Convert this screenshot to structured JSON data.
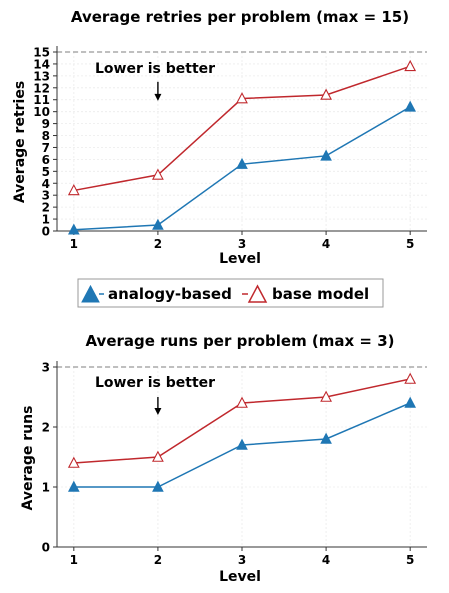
{
  "legend": {
    "placement": "between charts",
    "items": [
      {
        "label": "analogy-based",
        "color": "#1f77b4",
        "marker": "filled-triangle"
      },
      {
        "label": "base model",
        "color": "#c0282d",
        "marker": "hollow-triangle"
      }
    ]
  },
  "chart_data": [
    {
      "type": "line",
      "title": "Average retries per problem (max = 15)",
      "xlabel": "Level",
      "ylabel": "Average retries",
      "x": [
        1,
        2,
        3,
        4,
        5
      ],
      "x_ticks": [
        "1",
        "2",
        "3",
        "4",
        "5"
      ],
      "y_ticks": [
        "0",
        "1",
        "2",
        "3",
        "4",
        "5",
        "6",
        "7",
        "8",
        "9",
        "10",
        "11",
        "12",
        "13",
        "14",
        "15"
      ],
      "ylim": [
        0,
        15
      ],
      "xlim": [
        0.8,
        5.2
      ],
      "max_line": 15,
      "grid": true,
      "annotation": {
        "text": "Lower is better",
        "arrow_x": 2,
        "arrow_from_y": 12.5,
        "arrow_to_y": 10.9
      },
      "series": [
        {
          "name": "analogy-based",
          "color": "#1f77b4",
          "values": [
            0.1,
            0.5,
            5.6,
            6.3,
            10.4
          ]
        },
        {
          "name": "base model",
          "color": "#c0282d",
          "values": [
            3.4,
            4.7,
            11.1,
            11.4,
            13.8
          ]
        }
      ]
    },
    {
      "type": "line",
      "title": "Average runs per problem (max = 3)",
      "xlabel": "Level",
      "ylabel": "Average runs",
      "x": [
        1,
        2,
        3,
        4,
        5
      ],
      "x_ticks": [
        "1",
        "2",
        "3",
        "4",
        "5"
      ],
      "y_ticks": [
        "0",
        "1",
        "2",
        "3"
      ],
      "ylim": [
        0,
        3
      ],
      "xlim": [
        0.8,
        5.2
      ],
      "max_line": 3,
      "grid": true,
      "annotation": {
        "text": "Lower is better",
        "arrow_x": 2,
        "arrow_from_y": 2.5,
        "arrow_to_y": 2.2
      },
      "series": [
        {
          "name": "analogy-based",
          "color": "#1f77b4",
          "values": [
            1.0,
            1.0,
            1.7,
            1.8,
            2.4
          ]
        },
        {
          "name": "base model",
          "color": "#c0282d",
          "values": [
            1.4,
            1.5,
            2.4,
            2.5,
            2.8
          ]
        }
      ]
    }
  ]
}
